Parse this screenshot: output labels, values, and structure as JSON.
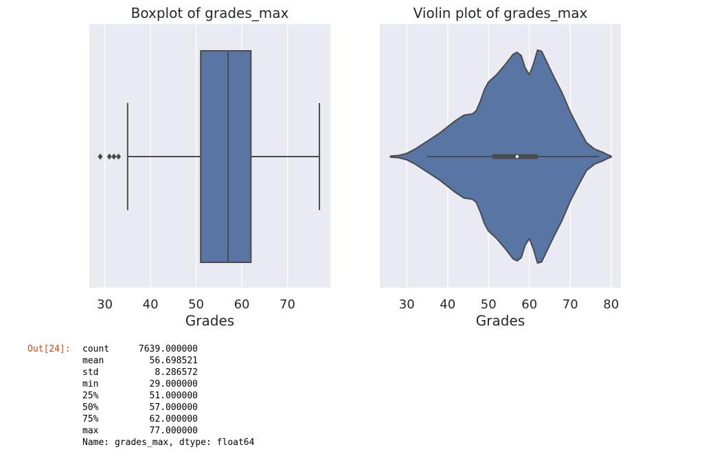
{
  "chart_data": [
    {
      "type": "boxplot",
      "title": "Boxplot of grades_max",
      "xlabel": "Grades",
      "xlim": [
        26.6,
        79.4
      ],
      "xticks": [
        30,
        40,
        50,
        60,
        70
      ],
      "min": 29,
      "q1": 51,
      "median": 57,
      "q3": 62,
      "max": 77,
      "whisker_low": 35,
      "whisker_high": 77,
      "outliers": [
        29,
        31,
        32,
        33
      ],
      "grid": true,
      "color": "#5875a4",
      "background": "#eaeaf2"
    },
    {
      "type": "violin",
      "title": "Violin plot of grades_max",
      "xlabel": "Grades",
      "xlim": [
        23.4,
        82.4
      ],
      "xticks": [
        30,
        40,
        50,
        60,
        70,
        80
      ],
      "q1": 51,
      "median": 57,
      "q3": 62,
      "whisker_low": 35,
      "whisker_high": 77,
      "density_extent": [
        26,
        80
      ],
      "density": [
        [
          26,
          0.005
        ],
        [
          28,
          0.01
        ],
        [
          30,
          0.03
        ],
        [
          32,
          0.07
        ],
        [
          34,
          0.12
        ],
        [
          36,
          0.17
        ],
        [
          38,
          0.22
        ],
        [
          40,
          0.28
        ],
        [
          42,
          0.34
        ],
        [
          44,
          0.39
        ],
        [
          45,
          0.395
        ],
        [
          46,
          0.4
        ],
        [
          47,
          0.43
        ],
        [
          48,
          0.52
        ],
        [
          49,
          0.63
        ],
        [
          50,
          0.7
        ],
        [
          52,
          0.77
        ],
        [
          54,
          0.86
        ],
        [
          56,
          0.96
        ],
        [
          57,
          0.98
        ],
        [
          58,
          0.95
        ],
        [
          59,
          0.83
        ],
        [
          60,
          0.77
        ],
        [
          61,
          0.87
        ],
        [
          62,
          1.0
        ],
        [
          63,
          0.99
        ],
        [
          64,
          0.91
        ],
        [
          66,
          0.75
        ],
        [
          68,
          0.6
        ],
        [
          70,
          0.42
        ],
        [
          72,
          0.27
        ],
        [
          74,
          0.13
        ],
        [
          76,
          0.07
        ],
        [
          78,
          0.04
        ],
        [
          79,
          0.02
        ],
        [
          80,
          0.005
        ]
      ],
      "grid": true,
      "color": "#5875a4",
      "background": "#eaeaf2"
    }
  ],
  "output": {
    "prompt": "Out[24]:",
    "stats": [
      {
        "key": "count",
        "value": "7639.000000"
      },
      {
        "key": "mean",
        "value": "56.698521"
      },
      {
        "key": "std",
        "value": "8.286572"
      },
      {
        "key": "min",
        "value": "29.000000"
      },
      {
        "key": "25%",
        "value": "51.000000"
      },
      {
        "key": "50%",
        "value": "57.000000"
      },
      {
        "key": "75%",
        "value": "62.000000"
      },
      {
        "key": "max",
        "value": "77.000000"
      }
    ],
    "footer": "Name: grades_max, dtype: float64"
  }
}
